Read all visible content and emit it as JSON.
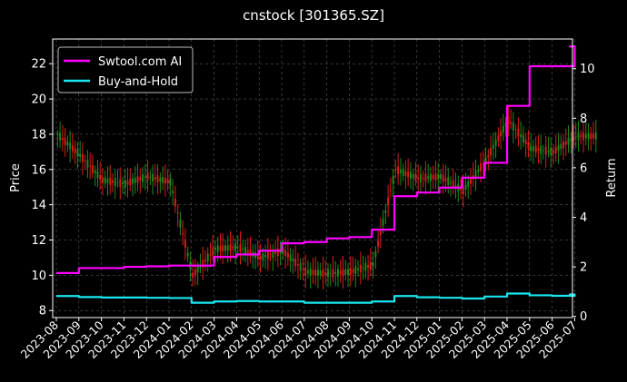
{
  "chart_data": {
    "type": "line",
    "title": "cnstock [301365.SZ]",
    "xlabel": "",
    "ylabel": "Price",
    "ylabel_right": "Return",
    "ylim": [
      7.6,
      23.4
    ],
    "ylim_right": [
      -0.05,
      11.2
    ],
    "yticks": [
      8,
      10,
      12,
      14,
      16,
      18,
      20,
      22
    ],
    "yticks_right": [
      0,
      2,
      4,
      6,
      8,
      10
    ],
    "x_ticks": [
      "2023-08",
      "2023-09",
      "2023-10",
      "2023-11",
      "2023-12",
      "2024-01",
      "2024-02",
      "2024-03",
      "2024-04",
      "2024-05",
      "2024-06",
      "2024-07",
      "2024-08",
      "2024-09",
      "2024-10",
      "2024-11",
      "2024-12",
      "2025-01",
      "2025-02",
      "2025-03",
      "2025-04",
      "2025-05",
      "2025-06",
      "2025-07"
    ],
    "grid": true,
    "legend_position": "upper-left",
    "colors": {
      "up": "#1f8a1f",
      "down": "#e01b1b",
      "strategy": "#ff00ff",
      "hold": "#19e6f0",
      "background": "#000000"
    },
    "price_series": {
      "name": "",
      "note_style": "candlestick",
      "x": [
        "2023-08",
        "2023-09",
        "2023-10",
        "2023-11",
        "2023-12",
        "2024-01",
        "2024-02",
        "2024-03",
        "2024-04",
        "2024-05",
        "2024-06",
        "2024-07",
        "2024-08",
        "2024-09",
        "2024-10",
        "2024-11",
        "2024-12",
        "2025-01",
        "2025-02",
        "2025-03",
        "2025-04",
        "2025-05",
        "2025-06",
        "2025-07"
      ],
      "values": [
        18.0,
        16.8,
        15.4,
        15.2,
        15.6,
        15.3,
        10.0,
        11.5,
        11.6,
        11.0,
        11.4,
        10.2,
        10.1,
        10.2,
        10.6,
        16.0,
        15.5,
        15.6,
        14.8,
        16.5,
        18.8,
        17.2,
        17.0,
        17.9
      ]
    },
    "series": [
      {
        "name": "Swtool.com AI",
        "x": [
          "2023-08",
          "2023-09",
          "2023-10",
          "2023-11",
          "2023-12",
          "2024-01",
          "2024-02",
          "2024-03",
          "2024-04",
          "2024-05",
          "2024-06",
          "2024-07",
          "2024-08",
          "2024-09",
          "2024-10",
          "2024-11",
          "2024-12",
          "2025-01",
          "2025-02",
          "2025-03",
          "2025-04",
          "2025-05",
          "2025-06",
          "2025-07"
        ],
        "values": [
          1.75,
          1.95,
          1.95,
          2.0,
          2.02,
          2.05,
          2.05,
          2.4,
          2.5,
          2.65,
          2.95,
          3.0,
          3.15,
          3.2,
          3.5,
          4.85,
          5.0,
          5.2,
          5.6,
          6.2,
          8.5,
          10.1,
          10.1,
          10.9
        ]
      },
      {
        "name": "Buy-and-Hold",
        "x": [
          "2023-08",
          "2023-09",
          "2023-10",
          "2023-11",
          "2023-12",
          "2024-01",
          "2024-02",
          "2024-03",
          "2024-04",
          "2024-05",
          "2024-06",
          "2024-07",
          "2024-08",
          "2024-09",
          "2024-10",
          "2024-11",
          "2024-12",
          "2025-01",
          "2025-02",
          "2025-03",
          "2025-04",
          "2025-05",
          "2025-06",
          "2025-07"
        ],
        "values": [
          0.82,
          0.78,
          0.76,
          0.76,
          0.75,
          0.74,
          0.55,
          0.6,
          0.62,
          0.6,
          0.6,
          0.55,
          0.55,
          0.55,
          0.6,
          0.82,
          0.77,
          0.75,
          0.72,
          0.8,
          0.92,
          0.85,
          0.83,
          0.88
        ]
      }
    ]
  }
}
